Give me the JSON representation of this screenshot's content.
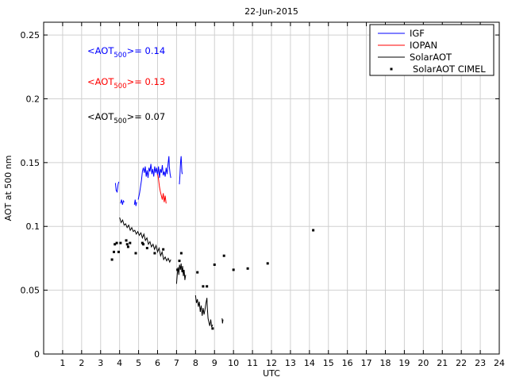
{
  "chart_data": {
    "type": "line",
    "title": "22-Jun-2015",
    "xlabel": "UTC",
    "ylabel": "AOT at 500 nm",
    "xlim": [
      0,
      24
    ],
    "ylim": [
      0,
      0.26
    ],
    "xticks": [
      1,
      2,
      3,
      4,
      5,
      6,
      7,
      8,
      9,
      10,
      11,
      12,
      13,
      14,
      15,
      16,
      17,
      18,
      19,
      20,
      21,
      22,
      23,
      24
    ],
    "yticks": [
      0,
      0.05,
      0.1,
      0.15,
      0.2,
      0.25
    ],
    "grid": true,
    "legend_position": "top-right",
    "annotations": [
      {
        "prefix": "<AOT",
        "sub": "500",
        "suffix": ">= 0.14",
        "color": "#0000ff"
      },
      {
        "prefix": "<AOT",
        "sub": "500",
        "suffix": ">= 0.13",
        "color": "#ff0000"
      },
      {
        "prefix": "<AOT",
        "sub": "500",
        "suffix": ">= 0.07",
        "color": "#000000"
      }
    ],
    "series": [
      {
        "name": "IGF",
        "style": "line",
        "color": "#0000ff",
        "segments": [
          [
            [
              3.78,
              0.134
            ],
            [
              3.82,
              0.128
            ],
            [
              3.87,
              0.127
            ],
            [
              3.92,
              0.133
            ],
            [
              3.96,
              0.135
            ]
          ],
          [
            [
              4.05,
              0.118
            ],
            [
              4.1,
              0.121
            ],
            [
              4.15,
              0.117
            ],
            [
              4.2,
              0.12
            ],
            [
              4.24,
              0.119
            ]
          ],
          [
            [
              4.78,
              0.117
            ],
            [
              4.82,
              0.121
            ],
            [
              4.86,
              0.116
            ],
            [
              4.9,
              0.119
            ]
          ],
          [
            [
              4.98,
              0.121
            ],
            [
              5.05,
              0.126
            ],
            [
              5.1,
              0.131
            ],
            [
              5.15,
              0.136
            ],
            [
              5.2,
              0.143
            ],
            [
              5.25,
              0.146
            ],
            [
              5.3,
              0.142
            ],
            [
              5.35,
              0.147
            ],
            [
              5.4,
              0.139
            ],
            [
              5.45,
              0.144
            ],
            [
              5.5,
              0.138
            ],
            [
              5.55,
              0.146
            ],
            [
              5.6,
              0.143
            ],
            [
              5.65,
              0.149
            ],
            [
              5.7,
              0.141
            ],
            [
              5.75,
              0.145
            ],
            [
              5.8,
              0.139
            ],
            [
              5.85,
              0.147
            ],
            [
              5.9,
              0.142
            ],
            [
              5.95,
              0.146
            ],
            [
              6.0,
              0.14
            ],
            [
              6.05,
              0.147
            ],
            [
              6.1,
              0.138
            ],
            [
              6.15,
              0.145
            ],
            [
              6.2,
              0.142
            ],
            [
              6.25,
              0.148
            ],
            [
              6.3,
              0.14
            ],
            [
              6.35,
              0.143
            ],
            [
              6.4,
              0.139
            ],
            [
              6.45,
              0.146
            ],
            [
              6.5,
              0.141
            ],
            [
              6.55,
              0.149
            ],
            [
              6.6,
              0.155
            ],
            [
              6.62,
              0.147
            ],
            [
              6.66,
              0.141
            ],
            [
              6.7,
              0.138
            ]
          ],
          [
            [
              7.15,
              0.133
            ],
            [
              7.18,
              0.14
            ],
            [
              7.2,
              0.147
            ],
            [
              7.22,
              0.152
            ],
            [
              7.24,
              0.155
            ],
            [
              7.26,
              0.15
            ],
            [
              7.28,
              0.143
            ],
            [
              7.3,
              0.141
            ]
          ]
        ]
      },
      {
        "name": "IOPAN",
        "style": "line",
        "color": "#ff0000",
        "segments": [
          [
            [
              6.0,
              0.141
            ],
            [
              6.05,
              0.137
            ],
            [
              6.1,
              0.131
            ],
            [
              6.15,
              0.127
            ],
            [
              6.2,
              0.124
            ],
            [
              6.25,
              0.121
            ],
            [
              6.3,
              0.126
            ],
            [
              6.35,
              0.119
            ],
            [
              6.4,
              0.124
            ],
            [
              6.45,
              0.118
            ]
          ]
        ]
      },
      {
        "name": "SolarAOT",
        "style": "line",
        "color": "#000000",
        "segments": [
          [
            [
              4.0,
              0.107
            ],
            [
              4.08,
              0.103
            ],
            [
              4.16,
              0.105
            ],
            [
              4.24,
              0.101
            ],
            [
              4.32,
              0.102
            ],
            [
              4.4,
              0.099
            ],
            [
              4.48,
              0.101
            ],
            [
              4.56,
              0.097
            ],
            [
              4.64,
              0.099
            ],
            [
              4.72,
              0.096
            ],
            [
              4.8,
              0.097
            ],
            [
              4.88,
              0.094
            ],
            [
              4.96,
              0.096
            ],
            [
              5.04,
              0.093
            ],
            [
              5.12,
              0.095
            ],
            [
              5.2,
              0.091
            ],
            [
              5.28,
              0.094
            ],
            [
              5.36,
              0.089
            ],
            [
              5.44,
              0.091
            ],
            [
              5.52,
              0.086
            ],
            [
              5.6,
              0.088
            ],
            [
              5.68,
              0.084
            ],
            [
              5.76,
              0.086
            ],
            [
              5.84,
              0.082
            ],
            [
              5.92,
              0.085
            ],
            [
              6.0,
              0.08
            ],
            [
              6.08,
              0.083
            ],
            [
              6.16,
              0.077
            ],
            [
              6.24,
              0.08
            ],
            [
              6.32,
              0.074
            ],
            [
              6.4,
              0.076
            ],
            [
              6.48,
              0.073
            ],
            [
              6.56,
              0.075
            ],
            [
              6.64,
              0.072
            ],
            [
              6.7,
              0.074
            ]
          ],
          [
            [
              7.0,
              0.055
            ],
            [
              7.04,
              0.063
            ],
            [
              7.08,
              0.068
            ],
            [
              7.12,
              0.062
            ],
            [
              7.16,
              0.07
            ],
            [
              7.2,
              0.066
            ],
            [
              7.24,
              0.071
            ],
            [
              7.28,
              0.064
            ],
            [
              7.32,
              0.069
            ],
            [
              7.36,
              0.061
            ],
            [
              7.4,
              0.066
            ],
            [
              7.44,
              0.058
            ],
            [
              7.48,
              0.062
            ]
          ],
          [
            [
              8.0,
              0.046
            ],
            [
              8.05,
              0.04
            ],
            [
              8.1,
              0.043
            ],
            [
              8.15,
              0.037
            ],
            [
              8.2,
              0.041
            ],
            [
              8.25,
              0.033
            ],
            [
              8.3,
              0.038
            ],
            [
              8.35,
              0.03
            ],
            [
              8.4,
              0.036
            ],
            [
              8.45,
              0.031
            ],
            [
              8.5,
              0.035
            ],
            [
              8.55,
              0.04
            ],
            [
              8.6,
              0.044
            ],
            [
              8.62,
              0.036
            ],
            [
              8.66,
              0.028
            ],
            [
              8.7,
              0.025
            ],
            [
              8.75,
              0.022
            ],
            [
              8.8,
              0.027
            ],
            [
              8.85,
              0.021
            ],
            [
              8.9,
              0.023
            ]
          ],
          [
            [
              9.4,
              0.028
            ],
            [
              9.42,
              0.024
            ],
            [
              9.45,
              0.027
            ]
          ]
        ]
      },
      {
        "name": "SolarAOT CIMEL",
        "style": "marker",
        "color": "#000000",
        "points": [
          [
            3.6,
            0.074
          ],
          [
            3.7,
            0.08
          ],
          [
            3.75,
            0.086
          ],
          [
            3.85,
            0.087
          ],
          [
            3.95,
            0.08
          ],
          [
            4.05,
            0.087
          ],
          [
            4.35,
            0.089
          ],
          [
            4.4,
            0.086
          ],
          [
            4.45,
            0.084
          ],
          [
            4.55,
            0.087
          ],
          [
            4.85,
            0.079
          ],
          [
            5.2,
            0.087
          ],
          [
            5.25,
            0.086
          ],
          [
            5.45,
            0.083
          ],
          [
            5.85,
            0.079
          ],
          [
            6.3,
            0.082
          ],
          [
            7.05,
            0.066
          ],
          [
            7.15,
            0.073
          ],
          [
            7.25,
            0.079
          ],
          [
            7.35,
            0.065
          ],
          [
            8.1,
            0.064
          ],
          [
            8.4,
            0.053
          ],
          [
            8.6,
            0.053
          ],
          [
            8.9,
            0.02
          ],
          [
            9.0,
            0.07
          ],
          [
            9.5,
            0.077
          ],
          [
            10.0,
            0.066
          ],
          [
            10.75,
            0.067
          ],
          [
            11.8,
            0.071
          ],
          [
            14.2,
            0.097
          ]
        ]
      }
    ]
  }
}
